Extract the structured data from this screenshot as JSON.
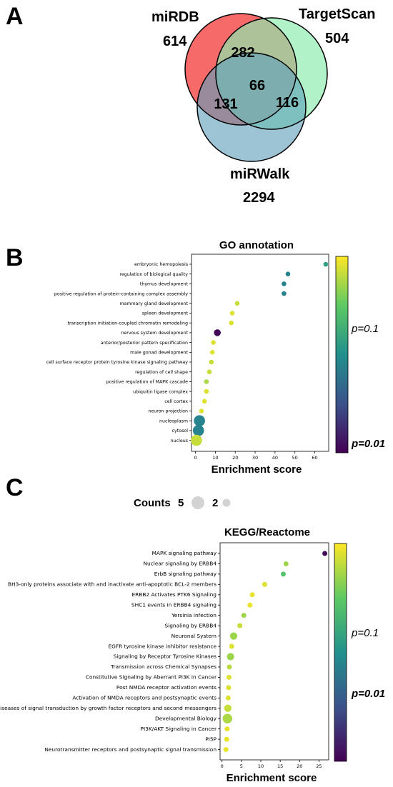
{
  "panels": {
    "a": "A",
    "b": "B",
    "c": "C"
  },
  "venn": {
    "sets": [
      {
        "name": "miRDB",
        "count": "614",
        "color": "#f44040"
      },
      {
        "name": "TargetScan",
        "count": "504",
        "color": "#92eeb3"
      },
      {
        "name": "miRWalk",
        "count": "2294",
        "color": "#6aa5bf"
      }
    ],
    "overlaps": {
      "mirdb_targetscan": "282",
      "all_three": "66",
      "mirdb_mirwalk": "131",
      "targetscan_mirwalk": "116"
    }
  },
  "size_legend": {
    "label": "Counts",
    "large": "5",
    "small": "2"
  },
  "colorbar_labels": {
    "high": "p=0.1",
    "low": "p=0.01"
  },
  "chart_data": [
    {
      "type": "scatter",
      "title": "GO annotation",
      "xlabel": "Enrichment score",
      "xlim": [
        -2,
        67
      ],
      "xticks": [
        0,
        10,
        20,
        30,
        40,
        50,
        60
      ],
      "points": [
        {
          "term": "embryonic hemopoiesis",
          "x": 65.5,
          "count": 2,
          "p": 0.04
        },
        {
          "term": "regulation of biological quality",
          "x": 46.5,
          "count": 2,
          "p": 0.03
        },
        {
          "term": "thymus development",
          "x": 44.5,
          "count": 2,
          "p": 0.03
        },
        {
          "term": "positive regulation of protein-containing complex assembly",
          "x": 44.5,
          "count": 2,
          "p": 0.03
        },
        {
          "term": "mammary gland development",
          "x": 21,
          "count": 2,
          "p": 0.1
        },
        {
          "term": "spleen development",
          "x": 18.5,
          "count": 2,
          "p": 0.11
        },
        {
          "term": "transcription initiation-coupled chromatin remodeling",
          "x": 18,
          "count": 2,
          "p": 0.11
        },
        {
          "term": "nervous system development",
          "x": 11,
          "count": 3,
          "p": 0.01
        },
        {
          "term": "anterior/posterior pattern specification",
          "x": 9,
          "count": 2,
          "p": 0.11
        },
        {
          "term": "male gonad development",
          "x": 8.5,
          "count": 2,
          "p": 0.11
        },
        {
          "term": "cell surface receptor protein tyrosine kinase signaling pathway",
          "x": 8,
          "count": 2,
          "p": 0.1
        },
        {
          "term": "regulation of cell shape",
          "x": 7,
          "count": 2,
          "p": 0.1
        },
        {
          "term": "positive regulation of MAPK cascade",
          "x": 5.5,
          "count": 2,
          "p": 0.09
        },
        {
          "term": "ubiquitin ligase complex",
          "x": 5.5,
          "count": 2,
          "p": 0.11
        },
        {
          "term": "cell cortex",
          "x": 4.5,
          "count": 2,
          "p": 0.11
        },
        {
          "term": "neuron projection",
          "x": 3,
          "count": 2,
          "p": 0.11
        },
        {
          "term": "nucleoplasm",
          "x": 2,
          "count": 5,
          "p": 0.03
        },
        {
          "term": "cytosol",
          "x": 1.5,
          "count": 5,
          "p": 0.03
        },
        {
          "term": "nucleus",
          "x": 0.5,
          "count": 5,
          "p": 0.1
        }
      ]
    },
    {
      "type": "scatter",
      "title": "KEGG/Reactome",
      "xlabel": "Enrichment score",
      "xlim": [
        -0.5,
        27.5
      ],
      "xticks": [
        0,
        5,
        10,
        15,
        20,
        25
      ],
      "points": [
        {
          "term": "MAPK signaling pathway",
          "x": 26.5,
          "count": 2,
          "p": 0.01
        },
        {
          "term": "Nuclear signaling by ERBB4",
          "x": 16.5,
          "count": 2,
          "p": 0.085
        },
        {
          "term": "ErbB signaling pathway",
          "x": 15.8,
          "count": 2,
          "p": 0.06
        },
        {
          "term": "BH3-only proteins associate with and inactivate anti-apoptotic BCL-2 members",
          "x": 11,
          "count": 2,
          "p": 0.11
        },
        {
          "term": "ERBB2 Activates PTK6 Signaling",
          "x": 7.8,
          "count": 2,
          "p": 0.115
        },
        {
          "term": "SHC1 events in ERBB4 signaling",
          "x": 7.2,
          "count": 2,
          "p": 0.115
        },
        {
          "term": "Yersinia infection",
          "x": 5.6,
          "count": 2,
          "p": 0.085
        },
        {
          "term": "Signaling by ERBB4",
          "x": 4.6,
          "count": 2,
          "p": 0.1
        },
        {
          "term": "Neuronal System",
          "x": 3.0,
          "count": 3,
          "p": 0.085
        },
        {
          "term": "EGFR tyrosine kinase inhibitor resistance",
          "x": 2.5,
          "count": 2,
          "p": 0.11
        },
        {
          "term": "Signaling by Receptor Tyrosine Kinases",
          "x": 2.2,
          "count": 3,
          "p": 0.085
        },
        {
          "term": "Transmission across Chemical Synapses",
          "x": 1.9,
          "count": 2,
          "p": 0.095
        },
        {
          "term": "Constitutive Signaling by Aberrant PI3K in Cancer",
          "x": 1.8,
          "count": 2,
          "p": 0.11
        },
        {
          "term": "Post NMDA receptor activation events",
          "x": 1.7,
          "count": 2,
          "p": 0.11
        },
        {
          "term": "Activation of NMDA receptors and postsynaptic events",
          "x": 1.6,
          "count": 2,
          "p": 0.11
        },
        {
          "term": "Diseases of signal transduction by growth factor receptors and second messengers",
          "x": 1.5,
          "count": 3,
          "p": 0.1
        },
        {
          "term": "Developmental Biology",
          "x": 1.4,
          "count": 4,
          "p": 0.09
        },
        {
          "term": "PI3K/AKT Signaling in Cancer",
          "x": 1.3,
          "count": 2,
          "p": 0.115
        },
        {
          "term": "PI5P",
          "x": 1.2,
          "count": 2,
          "p": 0.115
        },
        {
          "term": "Neurotransmitter receptors and postsynaptic signal transmission",
          "x": 1.0,
          "count": 2,
          "p": 0.115
        }
      ]
    }
  ]
}
